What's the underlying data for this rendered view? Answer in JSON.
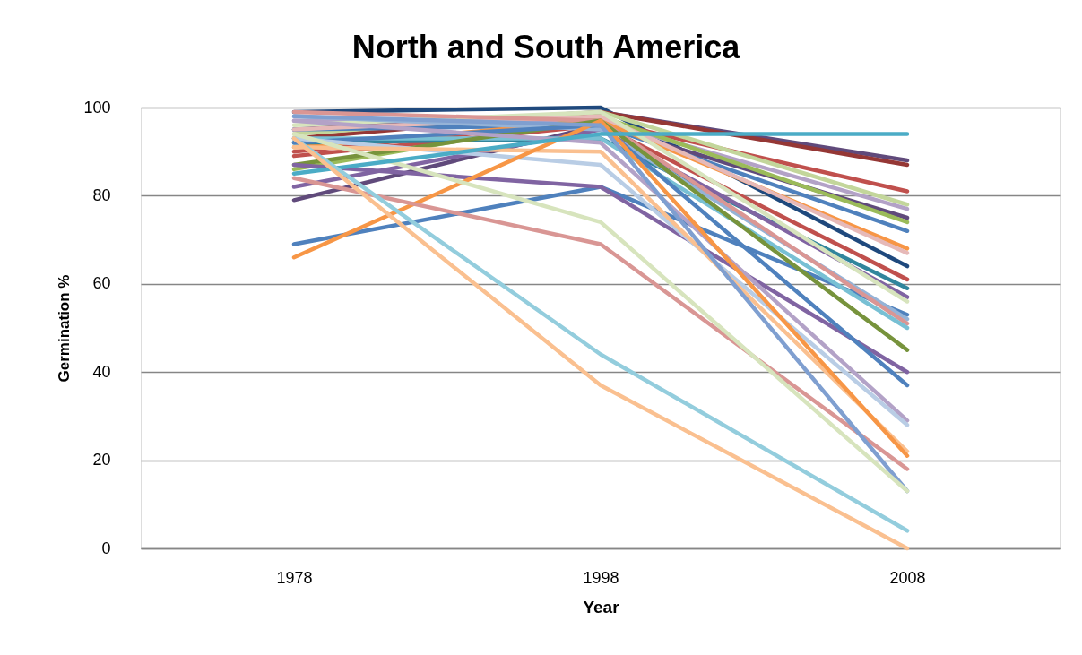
{
  "chart_data": {
    "type": "line",
    "title": "North and South America",
    "xlabel": "Year",
    "ylabel": "Germination %",
    "categories": [
      "1978",
      "1998",
      "2008"
    ],
    "ylim": [
      0,
      100
    ],
    "yticks": [
      0,
      20,
      40,
      60,
      80,
      100
    ],
    "grid": "y",
    "legend": false,
    "marker": "none",
    "line_style": "solid",
    "series": [
      {
        "color": "#1f497d",
        "values": [
          99,
          100,
          64
        ]
      },
      {
        "color": "#604a7b",
        "values": [
          95,
          99,
          88
        ]
      },
      {
        "color": "#953735",
        "values": [
          93,
          99,
          87
        ]
      },
      {
        "color": "#c0504d",
        "values": [
          90,
          97,
          81
        ]
      },
      {
        "color": "#c3d69b",
        "values": [
          94,
          99,
          78
        ]
      },
      {
        "color": "#b3a2c7",
        "values": [
          97,
          97,
          77
        ]
      },
      {
        "color": "#604a7b",
        "values": [
          79,
          96,
          75
        ]
      },
      {
        "color": "#9bbb59",
        "values": [
          86,
          98,
          74
        ]
      },
      {
        "color": "#4f81bd",
        "values": [
          95,
          96,
          72
        ]
      },
      {
        "color": "#f79646",
        "values": [
          91,
          97,
          68
        ]
      },
      {
        "color": "#e6b9b8",
        "values": [
          95,
          98,
          67
        ]
      },
      {
        "color": "#c0504d",
        "values": [
          89,
          96,
          61
        ]
      },
      {
        "color": "#31859c",
        "values": [
          92,
          93,
          59
        ]
      },
      {
        "color": "#8064a2",
        "values": [
          82,
          95,
          57
        ]
      },
      {
        "color": "#d7e4bd",
        "values": [
          96,
          99,
          56
        ]
      },
      {
        "color": "#4f81bd",
        "values": [
          69,
          82,
          53
        ]
      },
      {
        "color": "#95b3d7",
        "values": [
          98,
          95,
          52
        ]
      },
      {
        "color": "#da9694",
        "values": [
          99,
          97,
          51
        ]
      },
      {
        "color": "#78c0d4",
        "values": [
          93,
          93,
          50
        ]
      },
      {
        "color": "#77933c",
        "values": [
          87,
          97,
          45
        ]
      },
      {
        "color": "#8064a2",
        "values": [
          87,
          82,
          40
        ]
      },
      {
        "color": "#4f81bd",
        "values": [
          92,
          96,
          37
        ]
      },
      {
        "color": "#b3a2c7",
        "values": [
          97,
          92,
          29
        ]
      },
      {
        "color": "#b9cde5",
        "values": [
          93,
          87,
          28
        ]
      },
      {
        "color": "#fac090",
        "values": [
          91,
          90,
          22
        ]
      },
      {
        "color": "#f79646",
        "values": [
          66,
          97,
          21
        ]
      },
      {
        "color": "#d99694",
        "values": [
          84,
          69,
          18
        ]
      },
      {
        "color": "#7f9fd0",
        "values": [
          98,
          96,
          13
        ]
      },
      {
        "color": "#d7e4bd",
        "values": [
          94,
          74,
          13
        ]
      },
      {
        "color": "#4bacc6",
        "values": [
          85,
          94,
          94
        ]
      },
      {
        "color": "#93cddd",
        "values": [
          93,
          44,
          4
        ]
      },
      {
        "color": "#fac090",
        "values": [
          93,
          37,
          0
        ]
      }
    ]
  }
}
